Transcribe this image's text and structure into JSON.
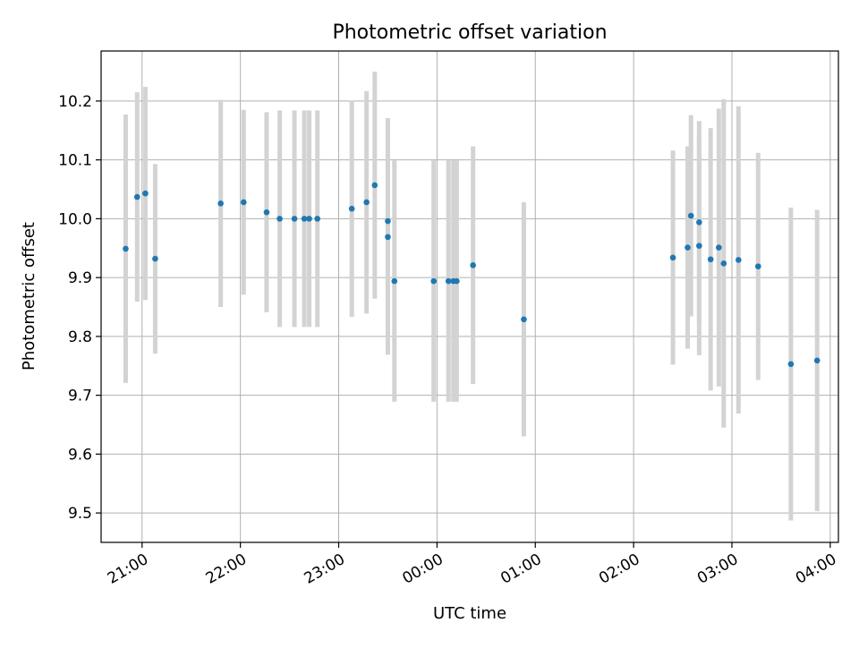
{
  "chart_data": {
    "type": "scatter",
    "title": "Photometric offset variation",
    "xlabel": "UTC time",
    "ylabel": "Photometric offset",
    "x_ticks": [
      "21:00",
      "22:00",
      "23:00",
      "00:00",
      "01:00",
      "02:00",
      "03:00",
      "04:00"
    ],
    "y_ticks": [
      "9.5",
      "9.6",
      "9.7",
      "9.8",
      "9.9",
      "10.0",
      "10.1",
      "10.2"
    ],
    "xlim": [
      "20:35",
      "04:05"
    ],
    "ylim": [
      9.45,
      10.285
    ],
    "grid": true,
    "colors": {
      "points": "#1f77b4",
      "error_bars": "#d3d3d3",
      "grid": "#b0b0b0",
      "axes": "#000000"
    },
    "series": [
      {
        "error_type": "symmetric",
        "points": [
          {
            "x": "20:50",
            "y": 9.949,
            "err": 0.228
          },
          {
            "x": "20:57",
            "y": 10.037,
            "err": 0.178
          },
          {
            "x": "21:02",
            "y": 10.043,
            "err": 0.181
          },
          {
            "x": "21:08",
            "y": 9.932,
            "err": 0.161
          },
          {
            "x": "21:48",
            "y": 10.026,
            "err": 0.176
          },
          {
            "x": "22:02",
            "y": 10.028,
            "err": 0.157
          },
          {
            "x": "22:16",
            "y": 10.011,
            "err": 0.17
          },
          {
            "x": "22:24",
            "y": 10.0,
            "err": 0.184
          },
          {
            "x": "22:33",
            "y": 10.0,
            "err": 0.184
          },
          {
            "x": "22:39",
            "y": 10.0,
            "err": 0.184
          },
          {
            "x": "22:42",
            "y": 10.0,
            "err": 0.184
          },
          {
            "x": "22:47",
            "y": 10.0,
            "err": 0.184
          },
          {
            "x": "23:08",
            "y": 10.017,
            "err": 0.184
          },
          {
            "x": "23:17",
            "y": 10.028,
            "err": 0.189
          },
          {
            "x": "23:22",
            "y": 10.057,
            "err": 0.193
          },
          {
            "x": "23:30",
            "y": 9.996,
            "err": 0.175
          },
          {
            "x": "23:30",
            "y": 9.969,
            "err": 0.2
          },
          {
            "x": "23:34",
            "y": 9.894,
            "err": 0.205
          },
          {
            "x": "23:58",
            "y": 9.894,
            "err": 0.205
          },
          {
            "x": "00:07",
            "y": 9.894,
            "err": 0.205
          },
          {
            "x": "00:10",
            "y": 9.894,
            "err": 0.205
          },
          {
            "x": "00:12",
            "y": 9.894,
            "err": 0.205
          },
          {
            "x": "00:22",
            "y": 9.921,
            "err": 0.202
          },
          {
            "x": "00:53",
            "y": 9.829,
            "err": 0.199
          },
          {
            "x": "02:24",
            "y": 9.934,
            "err": 0.182
          },
          {
            "x": "02:33",
            "y": 9.951,
            "err": 0.172
          },
          {
            "x": "02:35",
            "y": 10.005,
            "err": 0.171
          },
          {
            "x": "02:40",
            "y": 9.954,
            "err": 0.186
          },
          {
            "x": "02:40",
            "y": 9.994,
            "err": 0.172
          },
          {
            "x": "02:47",
            "y": 9.931,
            "err": 0.223
          },
          {
            "x": "02:52",
            "y": 9.951,
            "err": 0.236
          },
          {
            "x": "02:55",
            "y": 9.924,
            "err": 0.279
          },
          {
            "x": "03:04",
            "y": 9.93,
            "err": 0.261
          },
          {
            "x": "03:16",
            "y": 9.919,
            "err": 0.193
          },
          {
            "x": "03:36",
            "y": 9.753,
            "err": 0.266
          },
          {
            "x": "03:52",
            "y": 9.759,
            "err": 0.256
          }
        ]
      }
    ]
  }
}
